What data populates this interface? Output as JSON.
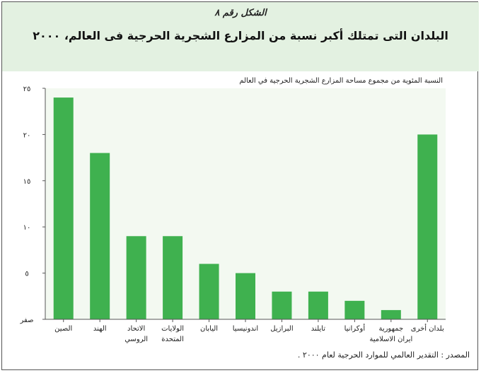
{
  "figure": {
    "label": "الشكل رقم ٨",
    "title": "البلدان التى تمتلك أكبر نسبة من المزارع الشجرية الحرجية فى العالم، ٢٠٠٠",
    "source": "المصدر : التقدير العالمي للموارد الحرجية لعام ٢٠٠٠ ."
  },
  "colors": {
    "header_bg": "#e3f1e1",
    "plot_bg": "#f3f9f1",
    "bar": "#3fb14f"
  },
  "chart_data": {
    "type": "bar",
    "title": "الشكل رقم ٨",
    "ylabel": "النسبة المئوية من مجموع مساحة المزارع الشجرية الحرجية في العالم",
    "ylim": [
      0,
      25
    ],
    "yticks": [
      0,
      5,
      10,
      15,
      20,
      25
    ],
    "ytick_labels": [
      "صفر",
      "٥",
      "١٠",
      "١٥",
      "٢٠",
      "٢٥"
    ],
    "categories": [
      [
        "الصين"
      ],
      [
        "الهند"
      ],
      [
        "الاتحاد",
        "الروسي"
      ],
      [
        "الولايات",
        "المتحدة"
      ],
      [
        "اليابان"
      ],
      [
        "اندونيسيا"
      ],
      [
        "البرازيل"
      ],
      [
        "تايلند"
      ],
      [
        "أوكرانيا"
      ],
      [
        "جمهورية",
        "ايران الاسلامية"
      ],
      [
        "بلدان أخرى"
      ]
    ],
    "values": [
      24,
      18,
      9,
      9,
      6,
      5,
      3,
      3,
      2,
      1,
      20
    ],
    "grid": false,
    "legend": "none"
  }
}
